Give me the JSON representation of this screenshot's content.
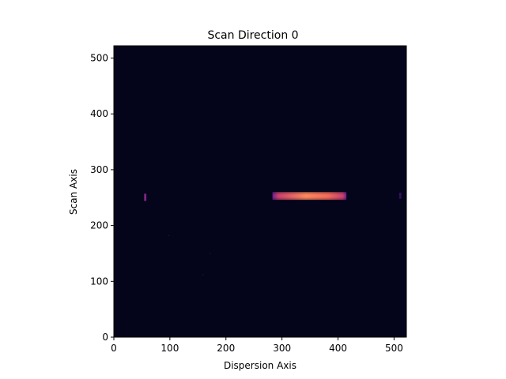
{
  "chart_data": {
    "type": "heatmap",
    "title": "Scan Direction 0",
    "xlabel": "Dispersion Axis",
    "ylabel": "Scan Axis",
    "xlim": [
      0,
      522
    ],
    "ylim": [
      0,
      522
    ],
    "xticks": [
      0,
      100,
      200,
      300,
      400,
      500
    ],
    "yticks": [
      0,
      100,
      200,
      300,
      400,
      500
    ],
    "colormap": "magma",
    "background_value": 0.0,
    "features": [
      {
        "label": "spectrum-trace",
        "x_range": [
          283,
          415
        ],
        "y_range": [
          246,
          260
        ],
        "peak": 0.55
      },
      {
        "label": "left-spot",
        "x_range": [
          54,
          58
        ],
        "y_range": [
          244,
          257
        ],
        "peak": 0.3
      },
      {
        "label": "right-edge-spot",
        "x_range": [
          509,
          513
        ],
        "y_range": [
          248,
          259
        ],
        "peak": 0.1
      },
      {
        "label": "faint-dot-1",
        "x_range": [
          97,
          99
        ],
        "y_range": [
          181,
          183
        ],
        "peak": 0.06
      },
      {
        "label": "faint-dot-2",
        "x_range": [
          171,
          173
        ],
        "y_range": [
          149,
          151
        ],
        "peak": 0.06
      },
      {
        "label": "faint-dot-3",
        "x_range": [
          158,
          160
        ],
        "y_range": [
          111,
          113
        ],
        "peak": 0.06
      }
    ],
    "grid": false
  }
}
